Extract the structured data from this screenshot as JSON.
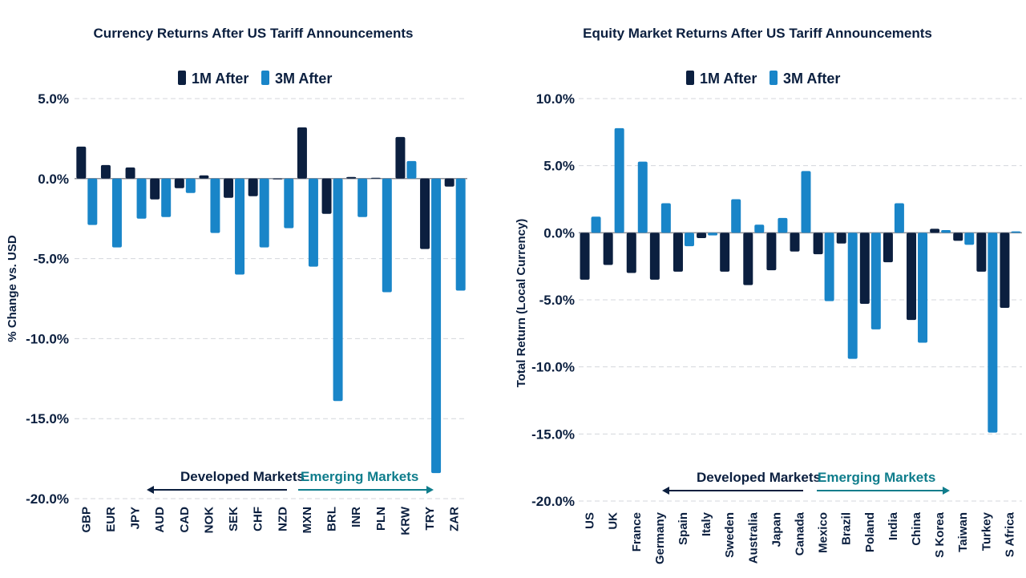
{
  "colors": {
    "m1": "#0b1f3f",
    "m3": "#1985c8",
    "dm": "#0b1f3f",
    "em": "#0f7d8c"
  },
  "chart_data": [
    {
      "type": "bar",
      "title": "Currency Returns After US Tariff Announcements",
      "ylabel": "% Change vs. USD",
      "xlabel": "",
      "ylim": [
        -20,
        5
      ],
      "yticks": [
        5,
        0,
        -5,
        -10,
        -15,
        -20
      ],
      "ytick_labels": [
        "5.0%",
        "0.0%",
        "-5.0%",
        "-10.0%",
        "-15.0%",
        "-20.0%"
      ],
      "legend": [
        "1M After",
        "3M After"
      ],
      "categories": [
        "GBP",
        "EUR",
        "JPY",
        "AUD",
        "CAD",
        "NOK",
        "SEK",
        "CHF",
        "NZD",
        "MXN",
        "BRL",
        "INR",
        "PLN",
        "KRW",
        "TRY",
        "ZAR"
      ],
      "series": [
        {
          "name": "1M After",
          "values": [
            2.0,
            0.85,
            0.7,
            -1.3,
            -0.6,
            0.2,
            -1.2,
            -1.1,
            0.0,
            3.2,
            -2.2,
            0.1,
            0.05,
            2.6,
            -4.4,
            -0.5
          ]
        },
        {
          "name": "3M After",
          "values": [
            -2.9,
            -4.3,
            -2.5,
            -2.4,
            -0.9,
            -3.4,
            -6.0,
            -4.3,
            -3.1,
            -5.5,
            -13.9,
            -2.4,
            -7.1,
            1.1,
            -18.4,
            -7.0
          ]
        }
      ],
      "groups": {
        "developed": "Developed Markets",
        "emerging": "Emerging Markets"
      }
    },
    {
      "type": "bar",
      "title": "Equity Market Returns After US Tariff Announcements",
      "ylabel": "Total Return (Local Currency)",
      "xlabel": "",
      "ylim": [
        -20,
        10
      ],
      "yticks": [
        10,
        5,
        0,
        -5,
        -10,
        -15,
        -20
      ],
      "ytick_labels": [
        "10.0%",
        "5.0%",
        "0.0%",
        "-5.0%",
        "-10.0%",
        "-15.0%",
        "-20.0%"
      ],
      "legend": [
        "1M After",
        "3M After"
      ],
      "categories": [
        "US",
        "UK",
        "France",
        "Germany",
        "Spain",
        "Italy",
        "Sweden",
        "Australia",
        "Japan",
        "Canada",
        "Mexico",
        "Brazil",
        "Poland",
        "India",
        "China",
        "S Korea",
        "Taiwan",
        "Turkey",
        "S Africa"
      ],
      "series": [
        {
          "name": "1M After",
          "values": [
            -3.5,
            -2.4,
            -3.0,
            -3.5,
            -2.9,
            -0.4,
            -2.9,
            -3.9,
            -2.8,
            -1.4,
            -1.6,
            -0.8,
            -5.3,
            -2.2,
            -6.5,
            0.3,
            -0.6,
            -2.9,
            -5.6
          ]
        },
        {
          "name": "3M After",
          "values": [
            1.2,
            7.8,
            5.3,
            2.2,
            -1.0,
            -0.2,
            2.5,
            0.6,
            1.1,
            4.6,
            -5.1,
            -9.4,
            -7.2,
            2.2,
            -8.2,
            0.2,
            -0.9,
            -14.9,
            0.1
          ]
        }
      ],
      "groups": {
        "developed": "Developed Markets",
        "emerging": "Emerging Markets"
      }
    }
  ]
}
